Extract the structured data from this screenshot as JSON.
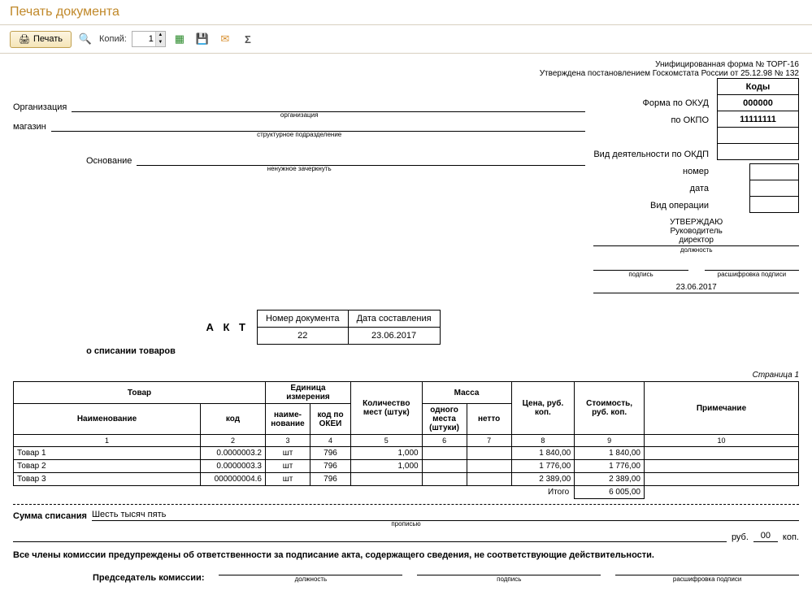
{
  "title": "Печать документа",
  "toolbar": {
    "print_label": "Печать",
    "copies_label": "Копий:",
    "copies_value": "1"
  },
  "header": {
    "form_line1": "Унифицированная форма № ТОРГ-16",
    "form_line2": "Утверждена постановлением Госкомстата России от 25.12.98 № 132",
    "codes_header": "Коды",
    "form_okud_label": "Форма по ОКУД",
    "form_okud_value": "000000",
    "okpo_label": "по ОКПО",
    "okpo_value": "11111111",
    "okdp_label": "Вид деятельности по ОКДП",
    "nomer_label": "номер",
    "data_label": "дата",
    "vid_label": "Вид операции"
  },
  "org": {
    "label": "Организация",
    "value": "",
    "caption": "организация",
    "store_label": "магазин",
    "store_caption": "структурное подразделение",
    "osn_label": "Основание",
    "osn_caption": "ненужное зачеркнуть"
  },
  "approve": {
    "utv": "УТВЕРЖДАЮ",
    "ruk": "Руководитель",
    "dir": "директор",
    "dolzh": "должность",
    "podpis": "подпись",
    "rasshifrovka": "расшифровка подписи",
    "date": "23.06.2017"
  },
  "akt": {
    "title": "А К Т",
    "subtitle": "о списании товаров",
    "doc_num_header": "Номер документа",
    "doc_date_header": "Дата составления",
    "doc_num": "22",
    "doc_date": "23.06.2017"
  },
  "page_ind": "Страница 1",
  "goods": {
    "headers": {
      "tovar": "Товар",
      "name": "Наименование",
      "kod": "код",
      "ed": "Единица измерения",
      "naimen": "наиме-\nнование",
      "okei": "код по\nОКЕИ",
      "qty": "Количество\nмест (штук)",
      "massa": "Масса",
      "one": "одного\nместа\n(штуки)",
      "netto": "нетто",
      "price": "Цена, руб.\nкоп.",
      "cost": "Стоимость,\nруб. коп.",
      "note": "Примечание"
    },
    "col_nums": [
      "1",
      "2",
      "3",
      "4",
      "5",
      "6",
      "7",
      "8",
      "9",
      "10"
    ],
    "rows": [
      {
        "name": "Товар 1",
        "kod": "0.0000003.2",
        "unit": "шт",
        "okei": "796",
        "qty": "1,000",
        "one": "",
        "netto": "",
        "price": "1 840,00",
        "cost": "1 840,00",
        "note": ""
      },
      {
        "name": "Товар 2",
        "kod": "0.0000003.3",
        "unit": "шт",
        "okei": "796",
        "qty": "1,000",
        "one": "",
        "netto": "",
        "price": "1 776,00",
        "cost": "1 776,00",
        "note": ""
      },
      {
        "name": "Товар 3",
        "kod": "000000004.6",
        "unit": "шт",
        "okei": "796",
        "qty": "",
        "one": "",
        "netto": "",
        "price": "2 389,00",
        "cost": "2 389,00",
        "note": ""
      }
    ],
    "total_label": "Итого",
    "total_value": "6 005,00"
  },
  "sum": {
    "label": "Сумма списания",
    "words": "Шесть тысяч пять",
    "caption": "прописью",
    "rub_label": "руб.",
    "rub_value": "00",
    "kop_label": "коп."
  },
  "warn": "Все члены комиссии предупреждены об ответственности за подписание акта, содержащего сведения, не соответствующие действительности.",
  "sig": {
    "chair": "Председатель комиссии:",
    "dolzh": "должность",
    "podpis": "подпись",
    "rassh": "расшифровка подписи"
  }
}
